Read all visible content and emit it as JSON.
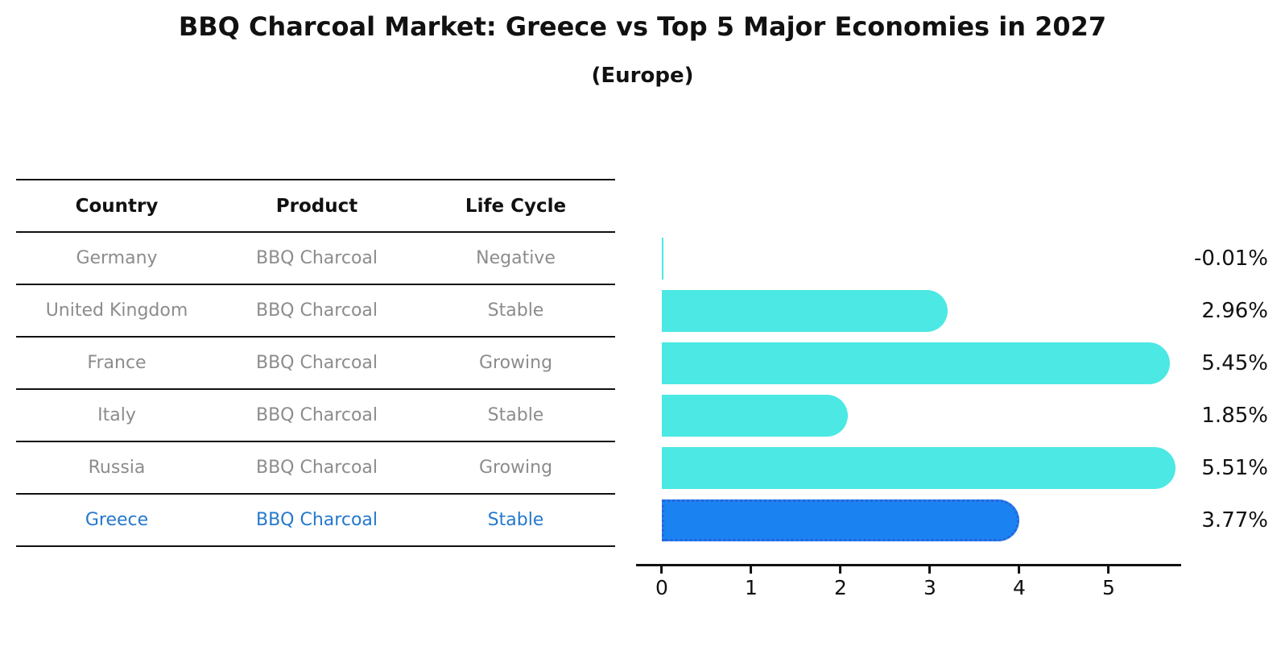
{
  "title": "BBQ Charcoal Market: Greece vs Top 5 Major Economies in 2027",
  "subtitle": "(Europe)",
  "colors": {
    "accent_text": "#2578cd",
    "table_text": "#8c8c8c",
    "line": "#111111"
  },
  "table": {
    "headers": [
      "Country",
      "Product",
      "Life Cycle"
    ],
    "rows": [
      {
        "country": "Germany",
        "product": "BBQ Charcoal",
        "life_cycle": "Negative",
        "highlight": false
      },
      {
        "country": "United Kingdom",
        "product": "BBQ Charcoal",
        "life_cycle": "Stable",
        "highlight": false
      },
      {
        "country": "France",
        "product": "BBQ Charcoal",
        "life_cycle": "Growing",
        "highlight": false
      },
      {
        "country": "Italy",
        "product": "BBQ Charcoal",
        "life_cycle": "Stable",
        "highlight": false
      },
      {
        "country": "Russia",
        "product": "BBQ Charcoal",
        "life_cycle": "Growing",
        "highlight": false
      },
      {
        "country": "Greece",
        "product": "BBQ Charcoal",
        "life_cycle": "Stable",
        "highlight": true
      }
    ]
  },
  "chart_data": {
    "type": "bar",
    "orientation": "horizontal",
    "title": "BBQ Charcoal Market: Greece vs Top 5 Major Economies in 2027 (Europe)",
    "categories": [
      "Germany",
      "United Kingdom",
      "France",
      "Italy",
      "Russia",
      "Greece"
    ],
    "values": [
      -0.01,
      2.96,
      5.45,
      1.85,
      5.51,
      3.77
    ],
    "value_labels": [
      "-0.01%",
      "2.96%",
      "5.45%",
      "1.85%",
      "5.51%",
      "3.77%"
    ],
    "xticks": [
      "0",
      "1",
      "2",
      "3",
      "4",
      "5"
    ],
    "xlim": [
      0,
      5.8
    ],
    "grid": false,
    "legend_position": "none",
    "highlight_index": 5,
    "bar_color": "#4be8e4",
    "highlight_bar_color": "#1b82f2",
    "highlight_bar_border": "#2b63d9"
  }
}
